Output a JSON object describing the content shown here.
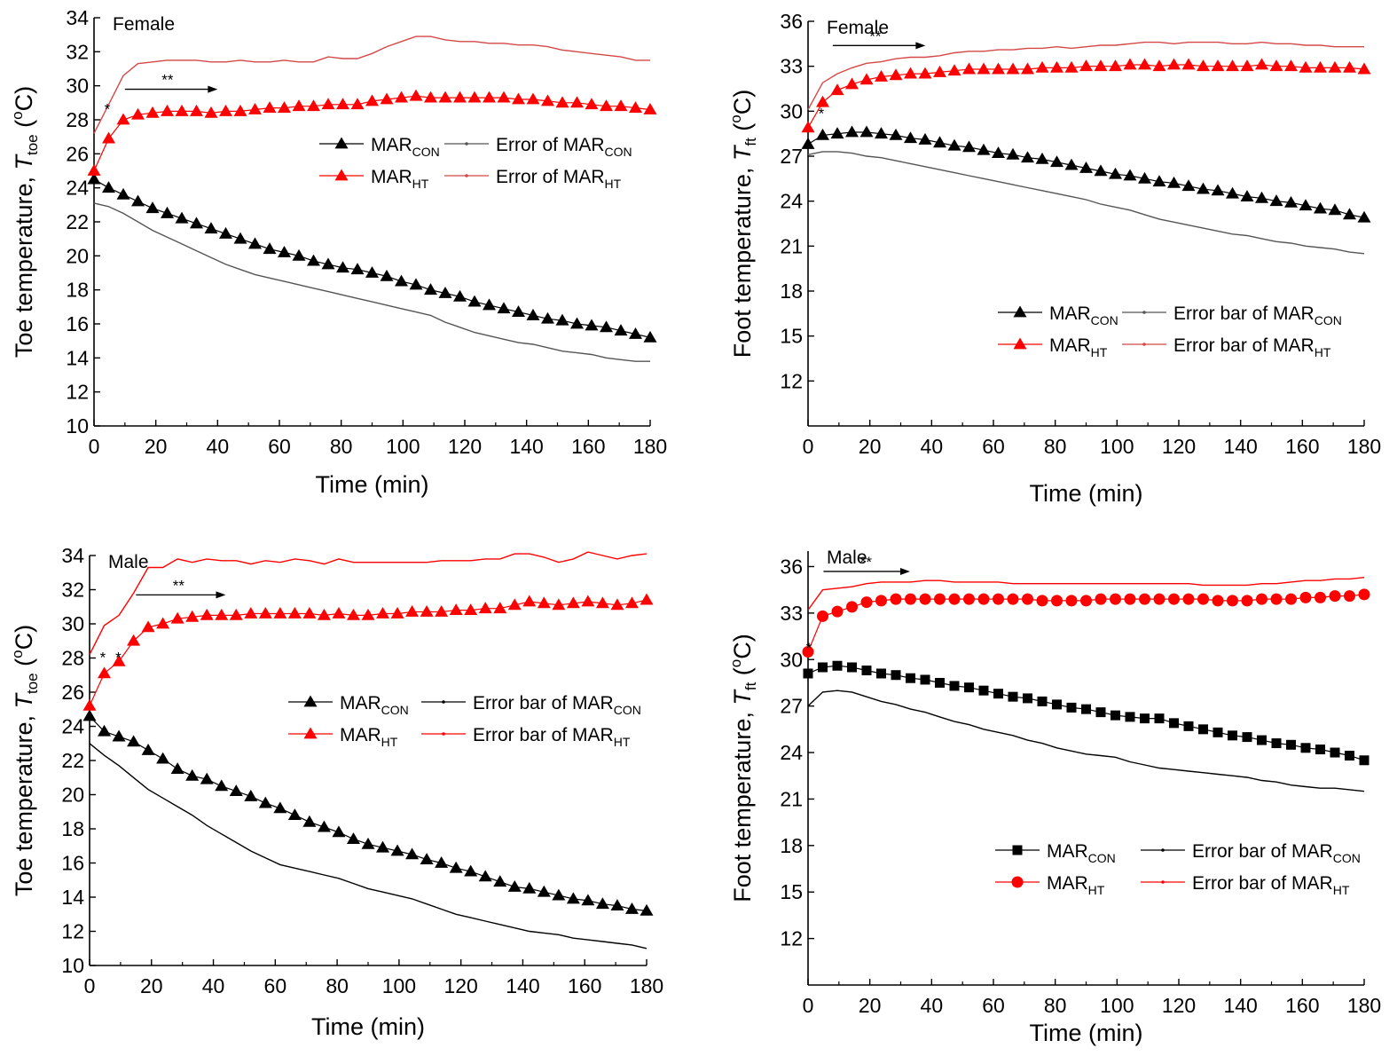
{
  "colors": {
    "con": "#000000",
    "ht": "#ff0000",
    "err_con": "#555555",
    "err_ht": "#d44848"
  },
  "chart_data": [
    {
      "id": "toe-female",
      "type": "line",
      "note": "Female",
      "xlabel": "Time (min)",
      "ylabel": {
        "main": "Toe temperature, ",
        "sym": "T",
        "sub": "toe",
        "unit_open": " (",
        "deg": "o",
        "unit_close": "C)"
      },
      "xlim": [
        0,
        180
      ],
      "xticks": [
        0,
        20,
        40,
        60,
        80,
        100,
        120,
        140,
        160,
        180
      ],
      "ylim": [
        10,
        34
      ],
      "yticks": [
        10,
        12,
        14,
        16,
        18,
        20,
        22,
        24,
        26,
        28,
        30,
        32,
        34
      ],
      "series": [
        {
          "name": "MAR",
          "sub": "CON",
          "marker": "triangle",
          "color": "con",
          "y": [
            24.5,
            24.0,
            23.6,
            23.2,
            22.8,
            22.5,
            22.2,
            21.9,
            21.6,
            21.3,
            21.0,
            20.7,
            20.4,
            20.2,
            20.0,
            19.7,
            19.5,
            19.3,
            19.2,
            19.0,
            18.8,
            18.5,
            18.3,
            18.0,
            17.8,
            17.6,
            17.3,
            17.1,
            16.9,
            16.7,
            16.5,
            16.3,
            16.2,
            16.0,
            15.9,
            15.8,
            15.6,
            15.4,
            15.2
          ]
        },
        {
          "name": "Error of MAR",
          "sub": "CON",
          "marker": "dot",
          "color": "err_con",
          "y": [
            23.1,
            22.9,
            22.5,
            22.0,
            21.5,
            21.1,
            20.7,
            20.3,
            19.9,
            19.5,
            19.2,
            18.9,
            18.7,
            18.5,
            18.3,
            18.1,
            17.9,
            17.7,
            17.5,
            17.3,
            17.1,
            16.9,
            16.7,
            16.5,
            16.1,
            15.8,
            15.5,
            15.3,
            15.1,
            14.9,
            14.8,
            14.6,
            14.4,
            14.3,
            14.2,
            14.0,
            13.9,
            13.8,
            13.8
          ]
        },
        {
          "name": "MAR",
          "sub": "HT",
          "marker": "triangle",
          "color": "ht",
          "y": [
            25.0,
            26.9,
            28.0,
            28.3,
            28.4,
            28.5,
            28.5,
            28.5,
            28.4,
            28.5,
            28.5,
            28.6,
            28.7,
            28.7,
            28.8,
            28.8,
            28.9,
            28.9,
            28.9,
            29.1,
            29.2,
            29.3,
            29.4,
            29.3,
            29.3,
            29.3,
            29.3,
            29.3,
            29.3,
            29.2,
            29.2,
            29.1,
            29.0,
            29.0,
            28.9,
            28.8,
            28.8,
            28.7,
            28.6
          ]
        },
        {
          "name": "Error of MAR",
          "sub": "HT",
          "marker": "dot",
          "color": "err_ht",
          "y": [
            27.2,
            28.9,
            30.6,
            31.3,
            31.4,
            31.5,
            31.5,
            31.5,
            31.4,
            31.4,
            31.5,
            31.4,
            31.4,
            31.5,
            31.4,
            31.4,
            31.7,
            31.6,
            31.6,
            31.9,
            32.3,
            32.6,
            32.9,
            32.9,
            32.7,
            32.6,
            32.6,
            32.5,
            32.5,
            32.4,
            32.4,
            32.3,
            32.1,
            32.0,
            31.9,
            31.8,
            31.7,
            31.5,
            31.5
          ]
        }
      ],
      "annotations": [
        {
          "text": "**",
          "x1": 10,
          "x2": 40,
          "y": 29.9,
          "arrow": true
        },
        {
          "text": "*",
          "x": 4,
          "y": 28.6
        }
      ]
    },
    {
      "id": "foot-female",
      "type": "line",
      "note": "Female",
      "xlabel": "Time (min)",
      "ylabel": {
        "main": "Foot temperature, ",
        "sym": "T",
        "sub": "ft",
        "unit_open": " (",
        "deg": "o",
        "unit_close": "C)"
      },
      "xlim": [
        0,
        180
      ],
      "xticks": [
        0,
        20,
        40,
        60,
        80,
        100,
        120,
        140,
        160,
        180
      ],
      "ylim": [
        9,
        36
      ],
      "yticks": [
        12,
        15,
        18,
        21,
        24,
        27,
        30,
        33,
        36
      ],
      "series": [
        {
          "name": "MAR",
          "sub": "CON",
          "marker": "triangle",
          "color": "con",
          "y": [
            27.8,
            28.4,
            28.5,
            28.6,
            28.6,
            28.5,
            28.4,
            28.2,
            28.1,
            27.9,
            27.7,
            27.6,
            27.4,
            27.2,
            27.1,
            26.9,
            26.8,
            26.6,
            26.4,
            26.2,
            26.0,
            25.8,
            25.7,
            25.5,
            25.3,
            25.2,
            25.0,
            24.8,
            24.7,
            24.5,
            24.3,
            24.2,
            24.0,
            23.9,
            23.7,
            23.5,
            23.4,
            23.1,
            22.9
          ]
        },
        {
          "name": "Error bar of MAR",
          "sub": "CON",
          "marker": "dot",
          "color": "err_con",
          "y": [
            27.1,
            27.3,
            27.3,
            27.2,
            27.0,
            26.9,
            26.7,
            26.5,
            26.3,
            26.1,
            25.9,
            25.7,
            25.5,
            25.3,
            25.1,
            24.9,
            24.7,
            24.5,
            24.3,
            24.1,
            23.8,
            23.6,
            23.4,
            23.1,
            22.8,
            22.6,
            22.4,
            22.2,
            22.0,
            21.8,
            21.7,
            21.5,
            21.3,
            21.2,
            21.0,
            20.9,
            20.8,
            20.6,
            20.5
          ]
        },
        {
          "name": "MAR",
          "sub": "HT",
          "marker": "triangle",
          "color": "ht",
          "y": [
            28.9,
            30.6,
            31.4,
            31.8,
            32.1,
            32.3,
            32.4,
            32.5,
            32.5,
            32.6,
            32.7,
            32.8,
            32.8,
            32.8,
            32.8,
            32.8,
            32.9,
            32.9,
            32.9,
            33.0,
            33.0,
            33.0,
            33.1,
            33.1,
            33.0,
            33.1,
            33.1,
            33.0,
            33.0,
            33.0,
            33.0,
            33.1,
            33.0,
            33.0,
            32.9,
            32.9,
            32.9,
            32.9,
            32.8
          ]
        },
        {
          "name": "Error bar of MAR",
          "sub": "HT",
          "marker": "dot",
          "color": "err_ht",
          "y": [
            30.1,
            31.9,
            32.5,
            32.9,
            33.2,
            33.3,
            33.5,
            33.6,
            33.6,
            33.7,
            33.9,
            34.0,
            34.0,
            34.1,
            34.1,
            34.2,
            34.2,
            34.3,
            34.2,
            34.3,
            34.4,
            34.4,
            34.5,
            34.6,
            34.6,
            34.5,
            34.6,
            34.6,
            34.6,
            34.5,
            34.5,
            34.6,
            34.5,
            34.5,
            34.4,
            34.4,
            34.3,
            34.3,
            34.3
          ]
        }
      ],
      "annotations": [
        {
          "text": "**",
          "x1": 8,
          "x2": 38,
          "y": 34.5,
          "arrow": true
        },
        {
          "text": "*",
          "x": 4,
          "y": 29.8
        }
      ]
    },
    {
      "id": "toe-male",
      "type": "line",
      "note": "Male",
      "xlabel": "Time (min)",
      "ylabel": {
        "main": "Toe temperature, ",
        "sym": "T",
        "sub": "toe",
        "unit_open": " (",
        "deg": "o",
        "unit_close": "C)"
      },
      "xlim": [
        0,
        180
      ],
      "xticks": [
        0,
        20,
        40,
        60,
        80,
        100,
        120,
        140,
        160,
        180
      ],
      "ylim": [
        10,
        34
      ],
      "yticks": [
        10,
        12,
        14,
        16,
        18,
        20,
        22,
        24,
        26,
        28,
        30,
        32,
        34
      ],
      "series": [
        {
          "name": "MAR",
          "sub": "CON",
          "marker": "triangle",
          "color": "con",
          "y": [
            24.6,
            23.7,
            23.4,
            23.1,
            22.6,
            22.1,
            21.5,
            21.1,
            20.9,
            20.5,
            20.2,
            19.9,
            19.5,
            19.2,
            18.8,
            18.4,
            18.1,
            17.8,
            17.4,
            17.1,
            16.9,
            16.7,
            16.5,
            16.2,
            16.0,
            15.7,
            15.5,
            15.2,
            14.9,
            14.6,
            14.5,
            14.3,
            14.1,
            13.9,
            13.8,
            13.6,
            13.5,
            13.3,
            13.2
          ]
        },
        {
          "name": "Error bar of MAR",
          "sub": "CON",
          "marker": "dot",
          "color": "con",
          "y": [
            23.0,
            22.3,
            21.7,
            21.0,
            20.3,
            19.8,
            19.3,
            18.8,
            18.2,
            17.7,
            17.2,
            16.7,
            16.3,
            15.9,
            15.7,
            15.5,
            15.3,
            15.1,
            14.8,
            14.5,
            14.3,
            14.1,
            13.9,
            13.6,
            13.3,
            13.0,
            12.8,
            12.6,
            12.4,
            12.2,
            12.0,
            11.9,
            11.8,
            11.6,
            11.5,
            11.4,
            11.3,
            11.2,
            11.0
          ]
        },
        {
          "name": "MAR",
          "sub": "HT",
          "marker": "triangle",
          "color": "ht",
          "y": [
            25.2,
            27.1,
            27.8,
            29.0,
            29.8,
            30.0,
            30.3,
            30.4,
            30.5,
            30.5,
            30.5,
            30.6,
            30.6,
            30.6,
            30.6,
            30.6,
            30.5,
            30.6,
            30.5,
            30.5,
            30.6,
            30.6,
            30.7,
            30.7,
            30.7,
            30.8,
            30.8,
            30.9,
            30.9,
            31.1,
            31.3,
            31.2,
            31.1,
            31.2,
            31.3,
            31.2,
            31.1,
            31.2,
            31.4
          ]
        },
        {
          "name": "Error bar of MAR",
          "sub": "HT",
          "marker": "dot",
          "color": "ht",
          "y": [
            28.2,
            29.9,
            30.5,
            31.8,
            33.3,
            33.3,
            33.8,
            33.6,
            33.8,
            33.7,
            33.7,
            33.5,
            33.7,
            33.6,
            33.8,
            33.7,
            33.5,
            33.8,
            33.6,
            33.6,
            33.6,
            33.6,
            33.6,
            33.6,
            33.7,
            33.7,
            33.7,
            33.8,
            33.8,
            34.1,
            34.1,
            33.9,
            33.6,
            33.8,
            34.2,
            34.0,
            33.8,
            34.0,
            34.1
          ]
        }
      ],
      "annotations": [
        {
          "text": "**",
          "x1": 15,
          "x2": 44,
          "y": 31.8,
          "arrow": true
        },
        {
          "text": "*",
          "x": 4,
          "y": 28.0
        },
        {
          "text": "*",
          "x": 9,
          "y": 28.0
        }
      ]
    },
    {
      "id": "foot-male",
      "type": "line",
      "note": "Male",
      "xlabel": "Time (min)",
      "ylabel": {
        "main": "Foot temperature, ",
        "sym": "T",
        "sub": "ft",
        "unit_open": " (",
        "deg": "o",
        "unit_close": "C)"
      },
      "xlim": [
        0,
        180
      ],
      "xticks": [
        0,
        20,
        40,
        60,
        80,
        100,
        120,
        140,
        160,
        180
      ],
      "ylim": [
        9,
        37
      ],
      "yticks": [
        12,
        15,
        18,
        21,
        24,
        27,
        30,
        33,
        36
      ],
      "series": [
        {
          "name": "MAR",
          "sub": "CON",
          "marker": "square",
          "color": "con",
          "y": [
            29.1,
            29.5,
            29.6,
            29.5,
            29.3,
            29.1,
            29.0,
            28.8,
            28.7,
            28.5,
            28.3,
            28.2,
            28.0,
            27.8,
            27.6,
            27.5,
            27.3,
            27.1,
            26.9,
            26.8,
            26.6,
            26.4,
            26.3,
            26.2,
            26.2,
            25.9,
            25.7,
            25.5,
            25.3,
            25.1,
            25.0,
            24.8,
            24.6,
            24.5,
            24.3,
            24.2,
            24.0,
            23.8,
            23.5
          ]
        },
        {
          "name": "Error bar of MAR",
          "sub": "CON",
          "marker": "dot",
          "color": "con",
          "y": [
            27.0,
            27.9,
            28.0,
            27.9,
            27.6,
            27.3,
            27.1,
            26.8,
            26.6,
            26.3,
            26.0,
            25.8,
            25.5,
            25.3,
            25.1,
            24.8,
            24.6,
            24.3,
            24.1,
            23.9,
            23.8,
            23.7,
            23.4,
            23.2,
            23.0,
            22.9,
            22.8,
            22.7,
            22.6,
            22.5,
            22.4,
            22.2,
            22.1,
            21.9,
            21.8,
            21.7,
            21.7,
            21.6,
            21.5
          ]
        },
        {
          "name": "MAR",
          "sub": "HT",
          "marker": "circle",
          "color": "ht",
          "y": [
            30.5,
            32.8,
            33.1,
            33.4,
            33.7,
            33.8,
            33.9,
            33.9,
            33.9,
            33.9,
            33.9,
            33.9,
            33.9,
            33.9,
            33.9,
            33.9,
            33.8,
            33.8,
            33.8,
            33.8,
            33.9,
            33.9,
            33.9,
            33.9,
            33.9,
            33.9,
            33.9,
            33.9,
            33.8,
            33.8,
            33.8,
            33.9,
            33.9,
            33.9,
            34.0,
            34.0,
            34.1,
            34.1,
            34.2
          ]
        },
        {
          "name": "Error bar of MAR",
          "sub": "HT",
          "marker": "dot",
          "color": "ht",
          "y": [
            33.2,
            34.5,
            34.6,
            34.7,
            34.9,
            35.0,
            35.0,
            35.0,
            35.1,
            35.1,
            35.0,
            35.0,
            35.0,
            35.0,
            34.9,
            34.9,
            34.9,
            34.9,
            34.9,
            34.9,
            34.9,
            34.9,
            34.9,
            34.9,
            34.9,
            34.9,
            34.9,
            34.8,
            34.8,
            34.8,
            34.8,
            34.9,
            34.9,
            35.0,
            35.1,
            35.1,
            35.2,
            35.2,
            35.3
          ]
        }
      ],
      "annotations": [
        {
          "text": "**",
          "x1": 5,
          "x2": 33,
          "y": 35.8,
          "arrow": true
        },
        {
          "text": "*",
          "x": 0,
          "y": 30.7
        }
      ]
    }
  ]
}
